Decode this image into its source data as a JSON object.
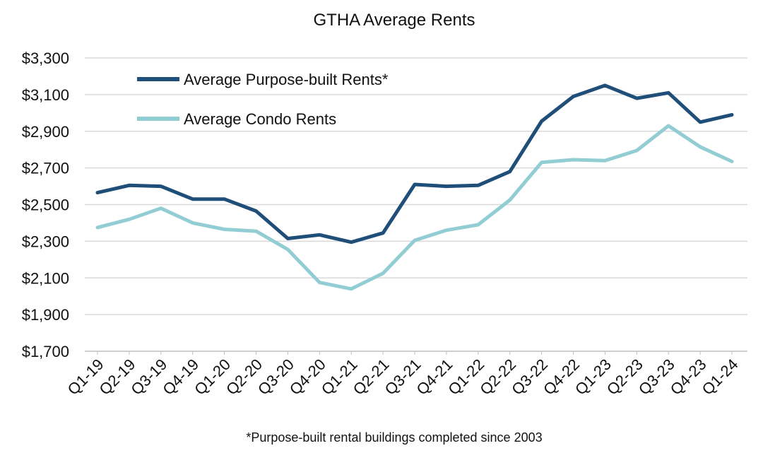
{
  "chart_data": {
    "type": "line",
    "title": "GTHA Average Rents",
    "footnote": "*Purpose-built rental buildings completed since 2003",
    "xlabel": "",
    "ylabel": "",
    "categories": [
      "Q1-19",
      "Q2-19",
      "Q3-19",
      "Q4-19",
      "Q1-20",
      "Q2-20",
      "Q3-20",
      "Q4-20",
      "Q1-21",
      "Q2-21",
      "Q3-21",
      "Q4-21",
      "Q1-22",
      "Q2-22",
      "Q3-22",
      "Q4-22",
      "Q1-23",
      "Q2-23",
      "Q3-23",
      "Q4-23",
      "Q1-24"
    ],
    "ylim": [
      1700,
      3300
    ],
    "yticks": [
      1700,
      1900,
      2100,
      2300,
      2500,
      2700,
      2900,
      3100,
      3300
    ],
    "ytick_labels": [
      "$1,700",
      "$1,900",
      "$2,100",
      "$2,300",
      "$2,500",
      "$2,700",
      "$2,900",
      "$3,100",
      "$3,300"
    ],
    "grid": "horizontal",
    "legend_position": "top-left",
    "series": [
      {
        "name": "Average Purpose-built Rents*",
        "color": "#1f4e79",
        "values": [
          2565,
          2605,
          2600,
          2530,
          2530,
          2465,
          2315,
          2335,
          2295,
          2345,
          2610,
          2600,
          2605,
          2680,
          2955,
          3090,
          3150,
          3080,
          3110,
          2950,
          2990
        ]
      },
      {
        "name": "Average Condo Rents",
        "color": "#92cdd4",
        "values": [
          2375,
          2420,
          2480,
          2400,
          2365,
          2355,
          2255,
          2075,
          2040,
          2125,
          2305,
          2360,
          2390,
          2525,
          2730,
          2745,
          2740,
          2795,
          2930,
          2815,
          2735
        ]
      }
    ]
  }
}
